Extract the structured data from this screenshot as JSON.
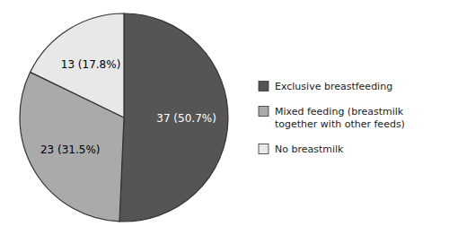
{
  "chart_data": {
    "type": "pie",
    "categories": [
      "Exclusive breastfeeding",
      "Mixed feeding (breastmilk\ntogether with other feeds)",
      "No breastmilk"
    ],
    "values": [
      37,
      23,
      13
    ],
    "value_labels": [
      "37 (50.7%)",
      "23 (31.5%)",
      "13 (17.8%)"
    ],
    "colors": [
      "#555555",
      "#aaaaaa",
      "#e8e8e8"
    ],
    "data_labels": true,
    "legend": "right"
  }
}
